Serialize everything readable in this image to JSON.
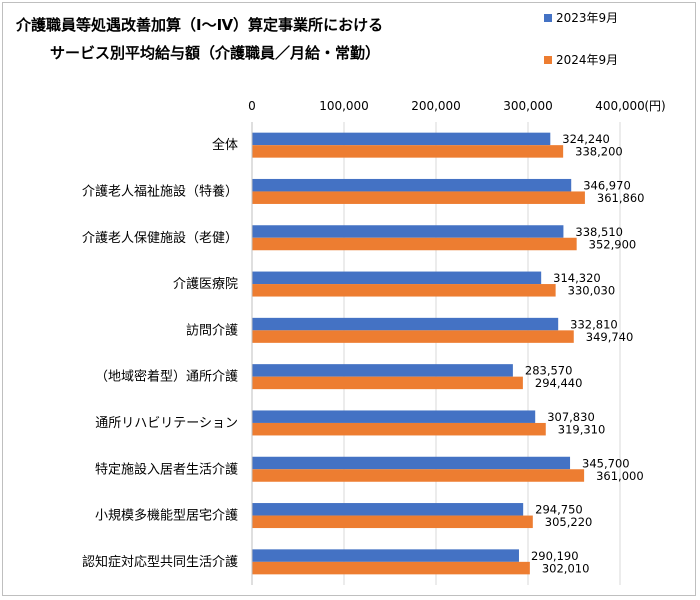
{
  "chart_data": {
    "type": "bar",
    "orientation": "horizontal",
    "title_lines": [
      "介護職員等処遇改善加算（Ⅰ～Ⅳ）算定事業所における",
      "サービス別平均給与額（介護職員／月給・常勤）"
    ],
    "unit_label": "(円)",
    "xlim": [
      0,
      400000
    ],
    "x_ticks": [
      "0",
      "100,000",
      "200,000",
      "300,000",
      "400,000"
    ],
    "x_tick_values": [
      0,
      100000,
      200000,
      300000,
      400000
    ],
    "grid": true,
    "legend_position": "top-right",
    "categories": [
      "全体",
      "介護老人福祉施設（特養）",
      "介護老人保健施設（老健）",
      "介護医療院",
      "訪問介護",
      "（地域密着型）通所介護",
      "通所リハビリテーション",
      "特定施設入居者生活介護",
      "小規模多機能型居宅介護",
      "認知症対応型共同生活介護"
    ],
    "series": [
      {
        "name": "2023年9月",
        "color": "#4472c4",
        "values": [
          324240,
          346970,
          338510,
          314320,
          332810,
          283570,
          307830,
          345700,
          294750,
          290190
        ],
        "labels": [
          "324,240",
          "346,970",
          "338,510",
          "314,320",
          "332,810",
          "283,570",
          "307,830",
          "345,700",
          "294,750",
          "290,190"
        ]
      },
      {
        "name": "2024年9月",
        "color": "#ed7d31",
        "values": [
          338200,
          361860,
          352900,
          330030,
          349740,
          294440,
          319310,
          361000,
          305220,
          302010
        ],
        "labels": [
          "338,200",
          "361,860",
          "352,900",
          "330,030",
          "349,740",
          "294,440",
          "319,310",
          "361,000",
          "305,220",
          "302,010"
        ]
      }
    ]
  }
}
